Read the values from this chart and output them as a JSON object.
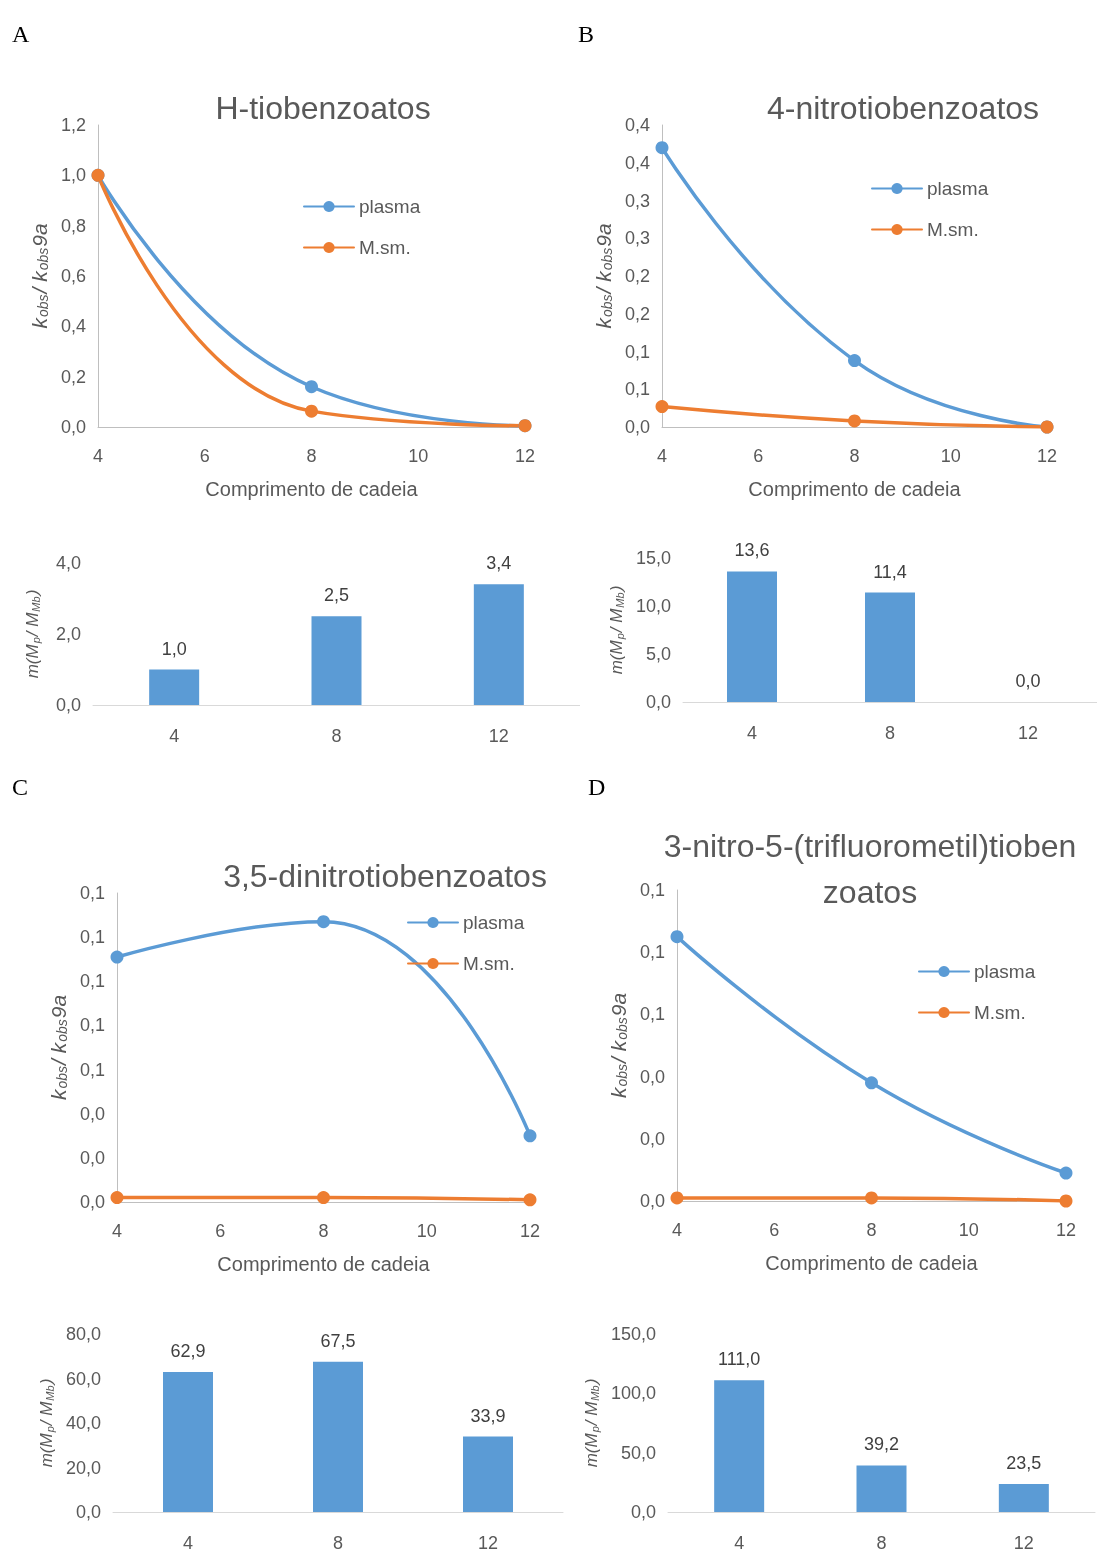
{
  "chart_data": [
    {
      "type": "line",
      "title": "H-tiobenzoatos",
      "annotations": [
        "A"
      ],
      "xlabel": "Comprimento de cadeia",
      "ylabel": "k$_{obs}$/ k$_{obs}$9a",
      "x": [
        4,
        8,
        12
      ],
      "xlim": [
        4,
        12
      ],
      "xticks": [
        4,
        6,
        8,
        10,
        12
      ],
      "ylim": [
        0,
        1.2
      ],
      "yticks": [
        {
          "value": 0,
          "label": "0,0"
        },
        {
          "value": 0.2,
          "label": "0,2"
        },
        {
          "value": 0.4,
          "label": "0,4"
        },
        {
          "value": 0.6,
          "label": "0,6"
        },
        {
          "value": 0.8,
          "label": "0,8"
        },
        {
          "value": 1,
          "label": "1,0"
        },
        {
          "value": 1.2,
          "label": "1,2"
        }
      ],
      "legend": "top right",
      "marker": "circle",
      "series": [
        {
          "name": "plasma",
          "color": "#5b9bd5",
          "values": [
            1.0,
            0.16,
            0.005
          ]
        },
        {
          "name": "M.sm.",
          "color": "#ed7d31",
          "values": [
            1.0,
            0.063,
            0.005
          ]
        }
      ]
    },
    {
      "type": "line",
      "title": "4-nitrotiobenzoatos",
      "annotations": [
        "B"
      ],
      "xlabel": "Comprimento de cadeia",
      "ylabel": "k$_{obs}$/ k$_{obs}$9a",
      "x": [
        4,
        8,
        12
      ],
      "xlim": [
        4,
        12
      ],
      "xticks": [
        4,
        6,
        8,
        10,
        12
      ],
      "ylim": [
        0,
        0.4
      ],
      "yticks": [
        {
          "value": 0,
          "label": "0,0"
        },
        {
          "value": 0.05,
          "label": "0,1"
        },
        {
          "value": 0.1,
          "label": "0,1"
        },
        {
          "value": 0.15,
          "label": "0,2"
        },
        {
          "value": 0.2,
          "label": "0,2"
        },
        {
          "value": 0.25,
          "label": "0,3"
        },
        {
          "value": 0.3,
          "label": "0,3"
        },
        {
          "value": 0.35,
          "label": "0,4"
        },
        {
          "value": 0.4,
          "label": "0,4"
        }
      ],
      "legend": "top right",
      "marker": "circle",
      "series": [
        {
          "name": "plasma",
          "color": "#5b9bd5",
          "values": [
            0.37,
            0.088,
            0.0
          ]
        },
        {
          "name": "M.sm.",
          "color": "#ed7d31",
          "values": [
            0.027,
            0.008,
            0.0
          ]
        }
      ]
    },
    {
      "type": "bar",
      "ylabel": "m(M$_{p}$/ M$_{Mb}$)",
      "categories": [
        "4",
        "8",
        "12"
      ],
      "ylim": [
        0,
        4
      ],
      "yticks": [
        {
          "value": 0,
          "label": "0,0"
        },
        {
          "value": 2,
          "label": "2,0"
        },
        {
          "value": 4,
          "label": "4,0"
        }
      ],
      "series": [
        {
          "color": "#5b9bd5",
          "values": [
            1.0,
            2.5,
            3.4
          ],
          "value_labels": [
            "1,0",
            "2,5",
            "3,4"
          ]
        }
      ]
    },
    {
      "type": "bar",
      "ylabel": "m(M$_{p}$/ M$_{Mb}$)",
      "categories": [
        "4",
        "8",
        "12"
      ],
      "ylim": [
        0,
        15
      ],
      "yticks": [
        {
          "value": 0,
          "label": "0,0"
        },
        {
          "value": 5,
          "label": "5,0"
        },
        {
          "value": 10,
          "label": "10,0"
        },
        {
          "value": 15,
          "label": "15,0"
        }
      ],
      "series": [
        {
          "color": "#5b9bd5",
          "values": [
            13.6,
            11.4,
            0.0
          ],
          "value_labels": [
            "13,6",
            "11,4",
            "0,0"
          ]
        }
      ]
    },
    {
      "type": "line",
      "title": "3,5-dinitrotiobenzoatos",
      "annotations": [
        "C"
      ],
      "xlabel": "Comprimento de cadeia",
      "ylabel": "k$_{obs}$/ k$_{obs}$9a",
      "x": [
        4,
        8,
        12
      ],
      "xlim": [
        4,
        12
      ],
      "xticks": [
        4,
        6,
        8,
        10,
        12
      ],
      "ylim": [
        0,
        0.14
      ],
      "yticks": [
        {
          "value": 0,
          "label": "0,0"
        },
        {
          "value": 0.02,
          "label": "0,0"
        },
        {
          "value": 0.04,
          "label": "0,0"
        },
        {
          "value": 0.06,
          "label": "0,1"
        },
        {
          "value": 0.08,
          "label": "0,1"
        },
        {
          "value": 0.1,
          "label": "0,1"
        },
        {
          "value": 0.12,
          "label": "0,1"
        },
        {
          "value": 0.14,
          "label": "0,1"
        }
      ],
      "legend": "top right",
      "marker": "circle",
      "series": [
        {
          "name": "plasma",
          "color": "#5b9bd5",
          "values": [
            0.111,
            0.127,
            0.03
          ]
        },
        {
          "name": "M.sm.",
          "color": "#ed7d31",
          "values": [
            0.002,
            0.002,
            0.001
          ]
        }
      ]
    },
    {
      "type": "line",
      "title": "3-nitro-5-(trifluorometil)tiobenzoatos",
      "annotations": [
        "D"
      ],
      "xlabel": "Comprimento de cadeia",
      "ylabel": "k$_{obs}$/ k$_{obs}$9a",
      "x": [
        4,
        8,
        12
      ],
      "xlim": [
        4,
        12
      ],
      "xticks": [
        4,
        6,
        8,
        10,
        12
      ],
      "ylim": [
        0,
        0.1
      ],
      "yticks": [
        {
          "value": 0,
          "label": "0,0"
        },
        {
          "value": 0.02,
          "label": "0,0"
        },
        {
          "value": 0.04,
          "label": "0,0"
        },
        {
          "value": 0.06,
          "label": "0,1"
        },
        {
          "value": 0.08,
          "label": "0,1"
        },
        {
          "value": 0.1,
          "label": "0,1"
        }
      ],
      "legend": "top right",
      "marker": "circle",
      "series": [
        {
          "name": "plasma",
          "color": "#5b9bd5",
          "values": [
            0.085,
            0.038,
            0.009
          ]
        },
        {
          "name": "M.sm.",
          "color": "#ed7d31",
          "values": [
            0.001,
            0.001,
            0.0
          ]
        }
      ]
    },
    {
      "type": "bar",
      "ylabel": "m(M$_{p}$/ M$_{Mb}$)",
      "categories": [
        "4",
        "8",
        "12"
      ],
      "ylim": [
        0,
        80
      ],
      "yticks": [
        {
          "value": 0,
          "label": "0,0"
        },
        {
          "value": 20,
          "label": "20,0"
        },
        {
          "value": 40,
          "label": "40,0"
        },
        {
          "value": 60,
          "label": "60,0"
        },
        {
          "value": 80,
          "label": "80,0"
        }
      ],
      "series": [
        {
          "color": "#5b9bd5",
          "values": [
            62.9,
            67.5,
            33.9
          ],
          "value_labels": [
            "62,9",
            "67,5",
            "33,9"
          ]
        }
      ]
    },
    {
      "type": "bar",
      "ylabel": "m(M$_{p}$/ M$_{Mb}$)",
      "categories": [
        "4",
        "8",
        "12"
      ],
      "ylim": [
        0,
        150
      ],
      "yticks": [
        {
          "value": 0,
          "label": "0,0"
        },
        {
          "value": 50,
          "label": "50,0"
        },
        {
          "value": 100,
          "label": "100,0"
        },
        {
          "value": 150,
          "label": "150,0"
        }
      ],
      "series": [
        {
          "color": "#5b9bd5",
          "values": [
            111.0,
            39.2,
            23.5
          ],
          "value_labels": [
            "111,0",
            "39,2",
            "23,5"
          ]
        }
      ]
    }
  ]
}
